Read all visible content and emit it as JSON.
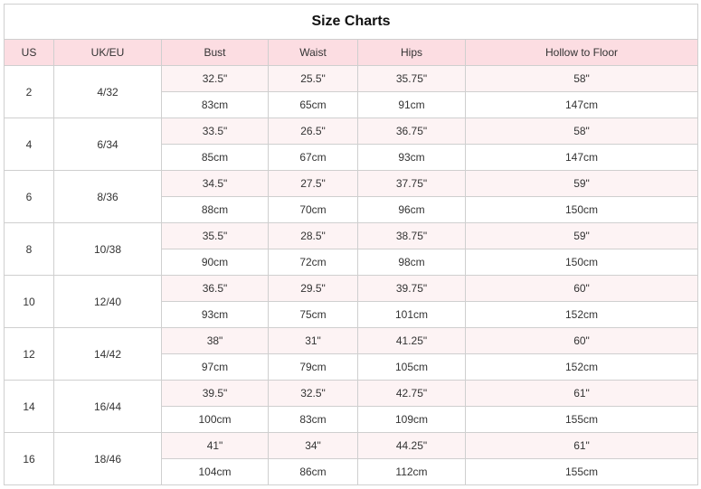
{
  "title": "Size Charts",
  "columns": [
    "US",
    "UK/EU",
    "Bust",
    "Waist",
    "Hips",
    "Hollow to Floor"
  ],
  "colors": {
    "header_bg": "#fcdde2",
    "inch_row_bg": "#fdf3f4",
    "border": "#cfcfcf"
  },
  "rows": [
    {
      "us": "2",
      "ukeu": "4/32",
      "inch": [
        "32.5\"",
        "25.5\"",
        "35.75\"",
        "58\""
      ],
      "cm": [
        "83cm",
        "65cm",
        "91cm",
        "147cm"
      ]
    },
    {
      "us": "4",
      "ukeu": "6/34",
      "inch": [
        "33.5\"",
        "26.5\"",
        "36.75\"",
        "58\""
      ],
      "cm": [
        "85cm",
        "67cm",
        "93cm",
        "147cm"
      ]
    },
    {
      "us": "6",
      "ukeu": "8/36",
      "inch": [
        "34.5\"",
        "27.5\"",
        "37.75\"",
        "59\""
      ],
      "cm": [
        "88cm",
        "70cm",
        "96cm",
        "150cm"
      ]
    },
    {
      "us": "8",
      "ukeu": "10/38",
      "inch": [
        "35.5\"",
        "28.5\"",
        "38.75\"",
        "59\""
      ],
      "cm": [
        "90cm",
        "72cm",
        "98cm",
        "150cm"
      ]
    },
    {
      "us": "10",
      "ukeu": "12/40",
      "inch": [
        "36.5\"",
        "29.5\"",
        "39.75\"",
        "60\""
      ],
      "cm": [
        "93cm",
        "75cm",
        "101cm",
        "152cm"
      ]
    },
    {
      "us": "12",
      "ukeu": "14/42",
      "inch": [
        "38\"",
        "31\"",
        "41.25\"",
        "60\""
      ],
      "cm": [
        "97cm",
        "79cm",
        "105cm",
        "152cm"
      ]
    },
    {
      "us": "14",
      "ukeu": "16/44",
      "inch": [
        "39.5\"",
        "32.5\"",
        "42.75\"",
        "61\""
      ],
      "cm": [
        "100cm",
        "83cm",
        "109cm",
        "155cm"
      ]
    },
    {
      "us": "16",
      "ukeu": "18/46",
      "inch": [
        "41\"",
        "34\"",
        "44.25\"",
        "61\""
      ],
      "cm": [
        "104cm",
        "86cm",
        "112cm",
        "155cm"
      ]
    }
  ]
}
